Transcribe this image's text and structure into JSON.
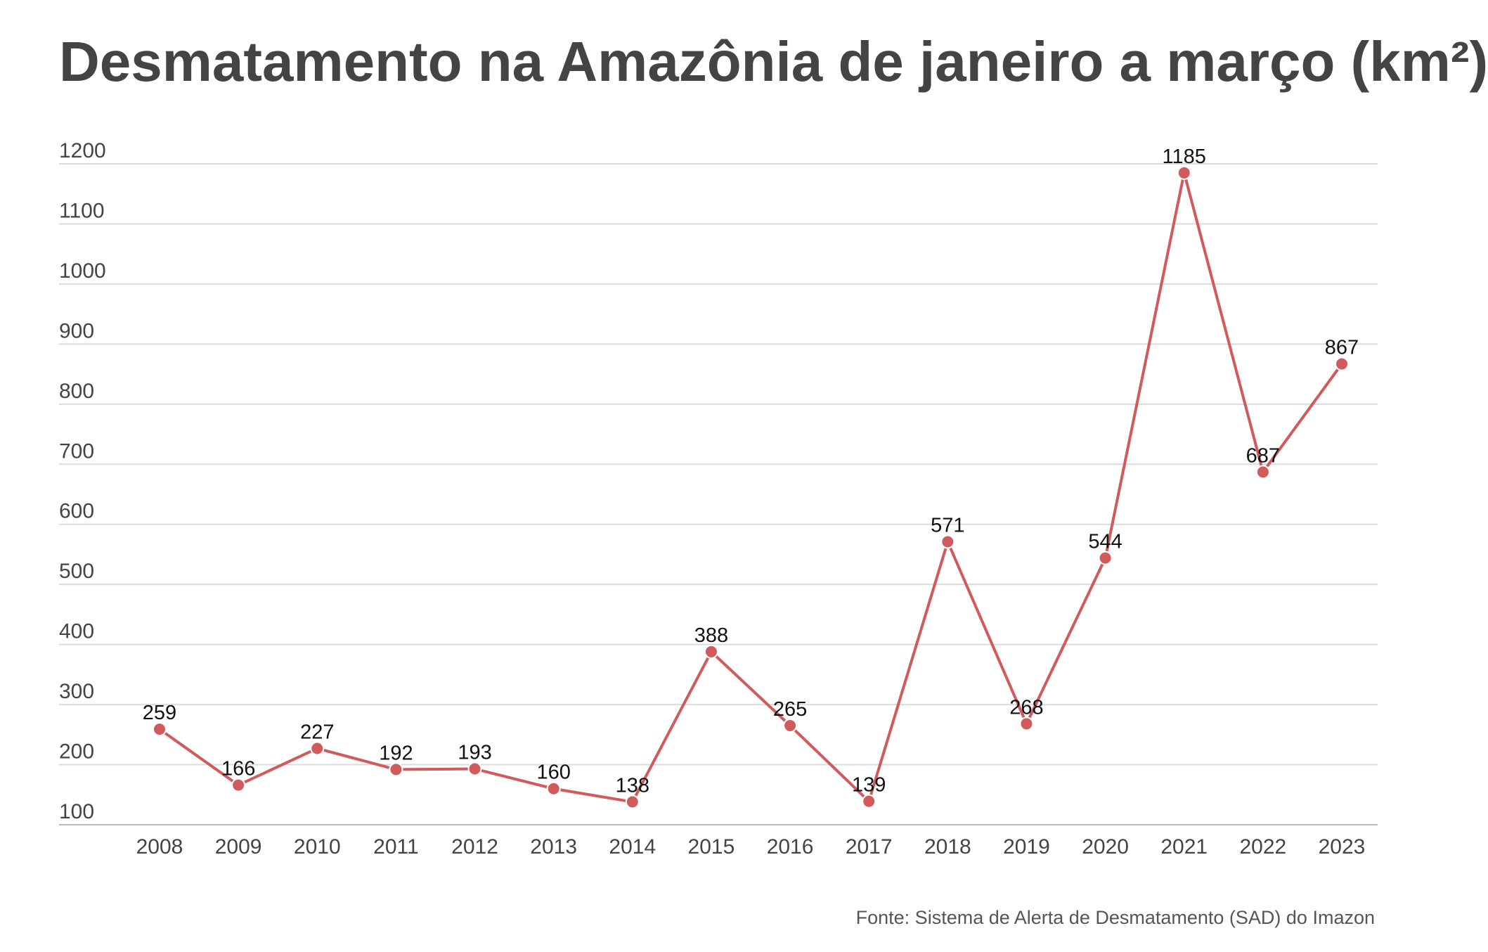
{
  "chart_data": {
    "type": "line",
    "title": "Desmatamento na Amazônia de janeiro a março (km²)",
    "xlabel": "",
    "ylabel": "",
    "categories": [
      "2008",
      "2009",
      "2010",
      "2011",
      "2012",
      "2013",
      "2014",
      "2015",
      "2016",
      "2017",
      "2018",
      "2019",
      "2020",
      "2021",
      "2022",
      "2023"
    ],
    "series": [
      {
        "values": [
          259,
          166,
          227,
          192,
          193,
          160,
          138,
          388,
          265,
          139,
          571,
          268,
          544,
          1185,
          687,
          867
        ]
      }
    ],
    "ylim": [
      100,
      1200
    ],
    "yticks": [
      1200,
      1100,
      1000,
      900,
      800,
      700,
      600,
      500,
      400,
      300,
      200,
      100
    ],
    "grid": true,
    "legend": "none",
    "line_color": "#d05a5c",
    "source": "Fonte: Sistema de Alerta de Desmatamento (SAD) do Imazon"
  }
}
